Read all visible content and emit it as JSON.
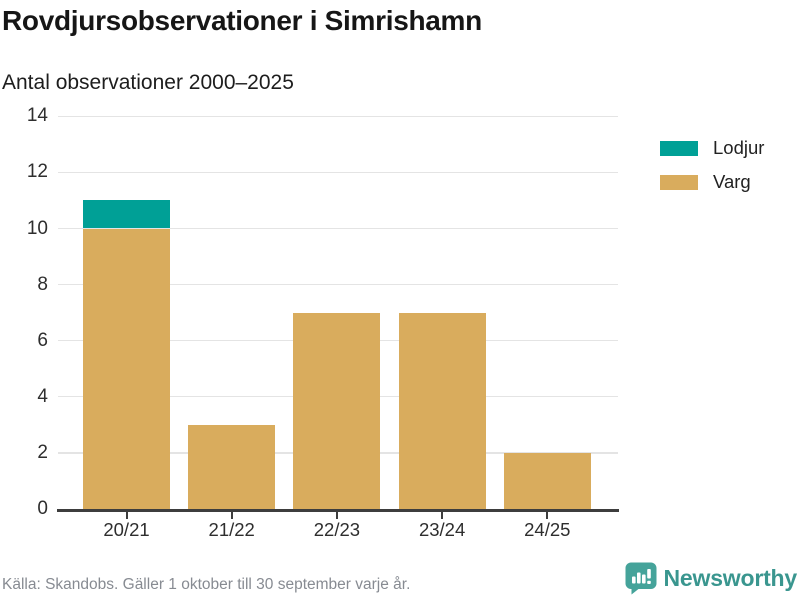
{
  "header": {
    "title": "Rovdjursobservationer i Simrishamn",
    "subtitle": "Antal observationer 2000–2025"
  },
  "chart_data": {
    "type": "bar",
    "stacked": true,
    "title": "Rovdjursobservationer i Simrishamn",
    "subtitle": "Antal observationer 2000–2025",
    "categories": [
      "20/21",
      "21/22",
      "22/23",
      "23/24",
      "24/25"
    ],
    "series": [
      {
        "name": "Lodjur",
        "color": "#00A096",
        "values": [
          1,
          0,
          0,
          0,
          0
        ]
      },
      {
        "name": "Varg",
        "color": "#D9AC5D",
        "values": [
          10,
          3,
          7,
          7,
          2
        ]
      }
    ],
    "stack_order_bottom_to_top": [
      "Varg",
      "Lodjur"
    ],
    "totals": [
      11,
      3,
      7,
      7,
      2
    ],
    "ylim": [
      0,
      14
    ],
    "yticks": [
      0,
      2,
      4,
      6,
      8,
      10,
      12,
      14
    ],
    "grid": true,
    "legend_position": "top-right"
  },
  "legend": {
    "items": [
      {
        "label": "Lodjur",
        "color": "#00A096"
      },
      {
        "label": "Varg",
        "color": "#D9AC5D"
      }
    ]
  },
  "footer": {
    "source": "Källa: Skandobs. Gäller 1 oktober till 30 september varje år.",
    "brand_name": "Newsworthy",
    "brand_color": "#3a968f",
    "brand_icon": "bar-chart-speech-bubble-icon",
    "brand_icon_color": "#45a39a"
  }
}
